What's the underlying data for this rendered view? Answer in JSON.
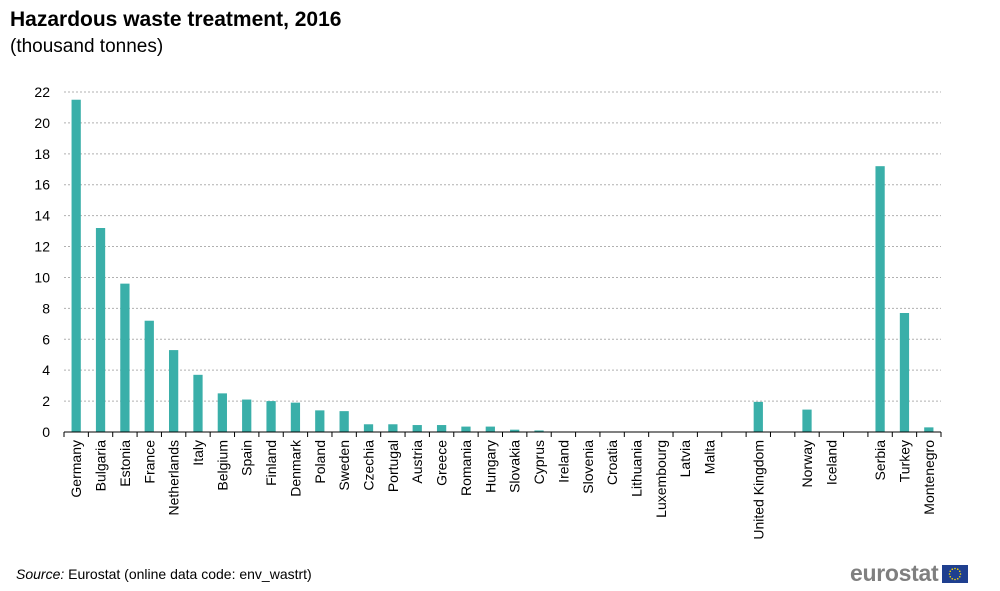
{
  "chart_data": {
    "type": "bar",
    "title": "Hazardous waste treatment, 2016",
    "subtitle": "(thousand tonnes)",
    "ylim": [
      0,
      22
    ],
    "yticks": [
      0,
      2,
      4,
      6,
      8,
      10,
      12,
      14,
      16,
      18,
      20,
      22
    ],
    "grid": true,
    "bar_color": "#3aafa9",
    "categories": [
      "Germany",
      "Bulgaria",
      "Estonia",
      "France",
      "Netherlands",
      "Italy",
      "Belgium",
      "Spain",
      "Finland",
      "Denmark",
      "Poland",
      "Sweden",
      "Czechia",
      "Portugal",
      "Austria",
      "Greece",
      "Romania",
      "Hungary",
      "Slovakia",
      "Cyprus",
      "Ireland",
      "Slovenia",
      "Croatia",
      "Lithuania",
      "Luxembourg",
      "Latvia",
      "Malta",
      "United Kingdom",
      "Norway",
      "Iceland",
      "Serbia",
      "Turkey",
      "Montenegro"
    ],
    "groups": [
      27,
      1,
      2,
      3
    ],
    "values": [
      21.5,
      13.2,
      9.6,
      7.2,
      5.3,
      3.7,
      2.5,
      2.1,
      2.0,
      1.9,
      1.4,
      1.35,
      0.5,
      0.5,
      0.45,
      0.45,
      0.35,
      0.35,
      0.15,
      0.1,
      0,
      0,
      0,
      0,
      0,
      0,
      0,
      1.95,
      1.45,
      0,
      17.2,
      7.7,
      0.3
    ]
  },
  "footer": {
    "source_label": "Source:",
    "source_text": " Eurostat (online data code: env_wastrt)",
    "logo_text": "eurostat"
  }
}
